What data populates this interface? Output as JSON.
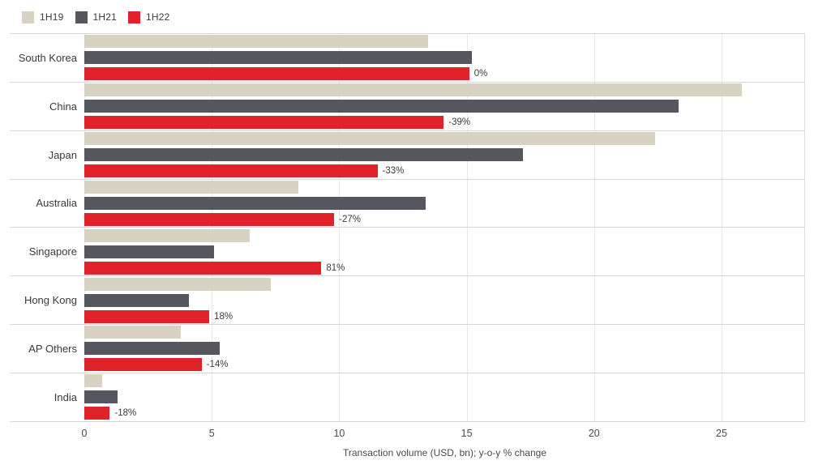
{
  "chart_data": {
    "type": "bar",
    "orientation": "horizontal",
    "xlabel": "Transaction volume (USD, bn); y-o-y % change",
    "ylabel": "",
    "categories": [
      "South Korea",
      "China",
      "Japan",
      "Australia",
      "Singapore",
      "Hong Kong",
      "AP Others",
      "India"
    ],
    "series": [
      {
        "name": "1H19",
        "color": "#d8d2c3",
        "values": [
          13.5,
          25.8,
          22.4,
          8.4,
          6.5,
          7.3,
          3.8,
          0.7
        ]
      },
      {
        "name": "1H21",
        "color": "#56565e",
        "values": [
          15.2,
          23.3,
          17.2,
          13.4,
          5.1,
          4.1,
          5.3,
          1.3
        ]
      },
      {
        "name": "1H22",
        "color": "#e0222a",
        "values": [
          15.1,
          14.1,
          11.5,
          9.8,
          9.3,
          4.9,
          4.6,
          1.0
        ]
      }
    ],
    "value_labels": [
      "0%",
      "-39%",
      "-33%",
      "-27%",
      "81%",
      "18%",
      "-14%",
      "-18%"
    ],
    "value_label_series": "1H22",
    "x_ticks": [
      0,
      5,
      10,
      15,
      20,
      25
    ],
    "xlim": [
      0,
      28.3
    ],
    "grid": "vertical-major",
    "legend_position": "top-left",
    "colors": {
      "grid_line": "#e9e9e9",
      "row_separator": "#d8d8d8",
      "text": "#3b3b3b"
    }
  }
}
